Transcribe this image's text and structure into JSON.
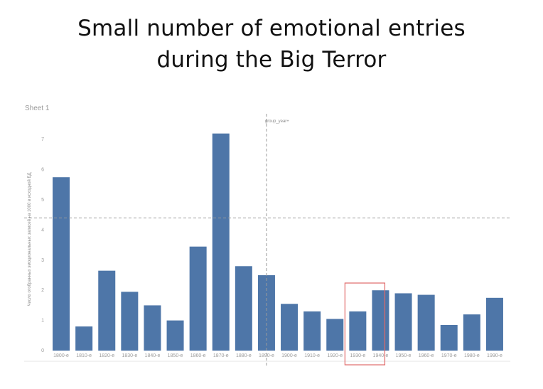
{
  "headline": {
    "line1": "Small number of emotional entries",
    "line2": "during the Big Terror"
  },
  "sheet": {
    "title": "Sheet 1"
  },
  "reference_line": {
    "label": "group_year+"
  },
  "colors": {
    "bar": "#4e76a8",
    "highlight": "#e06a6a",
    "grid": "#999999"
  },
  "chart_data": {
    "type": "bar",
    "title": "Sheet 1",
    "ylabel": "Число отобранных эмоциональных записей на 1000 в исходной БД",
    "xlabel": "",
    "categories": [
      "1800-e",
      "1810-e",
      "1820-e",
      "1830-e",
      "1840-e",
      "1850-e",
      "1860-e",
      "1870-e",
      "1880-e",
      "1890-e",
      "1900-e",
      "1910-e",
      "1920-e",
      "1930-e",
      "1940-e",
      "1950-e",
      "1960-e",
      "1970-e",
      "1980-e",
      "1990-e"
    ],
    "values": [
      5.75,
      0.8,
      2.65,
      1.95,
      1.5,
      1.0,
      3.45,
      7.2,
      2.8,
      2.5,
      1.55,
      1.3,
      1.05,
      1.3,
      2.0,
      1.9,
      1.85,
      0.85,
      1.2,
      1.75
    ],
    "yticks": [
      0,
      1,
      2,
      3,
      4,
      5,
      6,
      7
    ],
    "ylim": [
      0,
      7.5
    ],
    "reference_value": 4.4,
    "reference_category": "1890-e",
    "highlighted_categories": [
      "1930-e",
      "1940-e"
    ],
    "grid": false,
    "legend": "none"
  }
}
